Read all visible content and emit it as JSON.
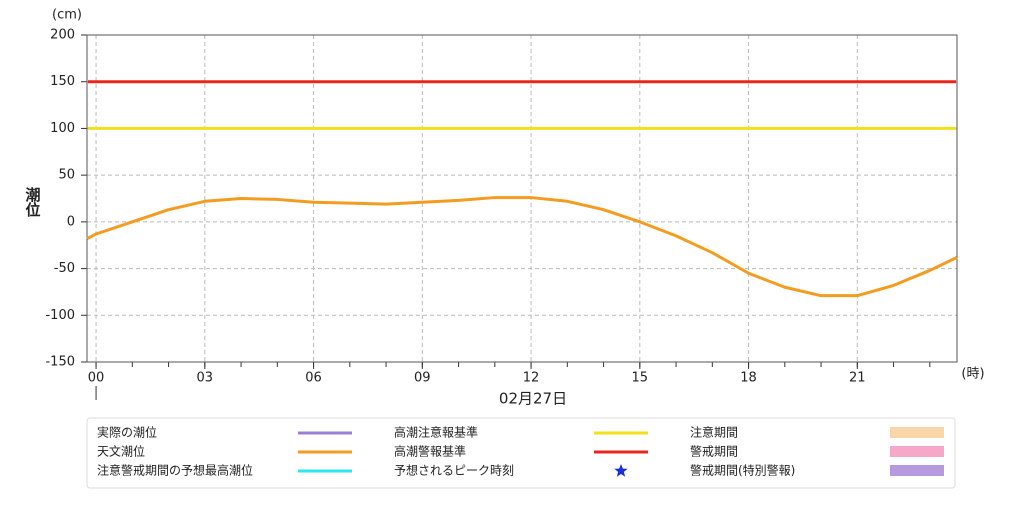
{
  "chart_data": {
    "type": "line",
    "y_unit": "(cm)",
    "y_label": "潮位",
    "x_unit": "(時)",
    "x_label": "02月27日",
    "xlim": [
      -0.25,
      23.75
    ],
    "xticks": [
      {
        "value": 0,
        "label": "00"
      },
      {
        "value": 3,
        "label": "03"
      },
      {
        "value": 6,
        "label": "06"
      },
      {
        "value": 9,
        "label": "09"
      },
      {
        "value": 12,
        "label": "12"
      },
      {
        "value": 15,
        "label": "15"
      },
      {
        "value": 18,
        "label": "18"
      },
      {
        "value": 21,
        "label": "21"
      }
    ],
    "ylim": [
      -150,
      200
    ],
    "yticks": [
      -150,
      -100,
      -50,
      0,
      50,
      100,
      150,
      200
    ],
    "grid": true,
    "series": [
      {
        "name": "天文潮位",
        "color": "#f39c1f",
        "x": [
          -0.25,
          0,
          1,
          2,
          3,
          4,
          5,
          6,
          7,
          8,
          9,
          10,
          11,
          12,
          13,
          14,
          15,
          16,
          17,
          18,
          19,
          20,
          21,
          22,
          23,
          23.75
        ],
        "values": [
          -18,
          -13,
          0,
          13,
          22,
          25,
          24,
          21,
          20,
          19,
          21,
          23,
          26,
          26,
          22,
          13,
          0,
          -15,
          -33,
          -55,
          -70,
          -79,
          -79,
          -68,
          -52,
          -38
        ]
      }
    ],
    "thresholds": [
      {
        "name": "高潮注意報基準",
        "color": "#f2e11a",
        "value": 100
      },
      {
        "name": "高潮警報基準",
        "color": "#e8261b",
        "value": 150
      }
    ],
    "legend_extra": [
      {
        "name": "実際の潮位",
        "color": "#9b7fd4",
        "symbol": "line"
      },
      {
        "name": "注意警戒期間の予想最高潮位",
        "color": "#2ee6f0",
        "symbol": "line"
      },
      {
        "name": "予想されるピーク時刻",
        "color": "#1a2fd6",
        "symbol": "star"
      },
      {
        "name": "注意期間",
        "color": "#f8d6a8",
        "symbol": "rect"
      },
      {
        "name": "警戒期間",
        "color": "#f7a8c8",
        "symbol": "rect"
      },
      {
        "name": "警戒期間(特別警報)",
        "color": "#b59ae0",
        "symbol": "rect"
      }
    ]
  }
}
